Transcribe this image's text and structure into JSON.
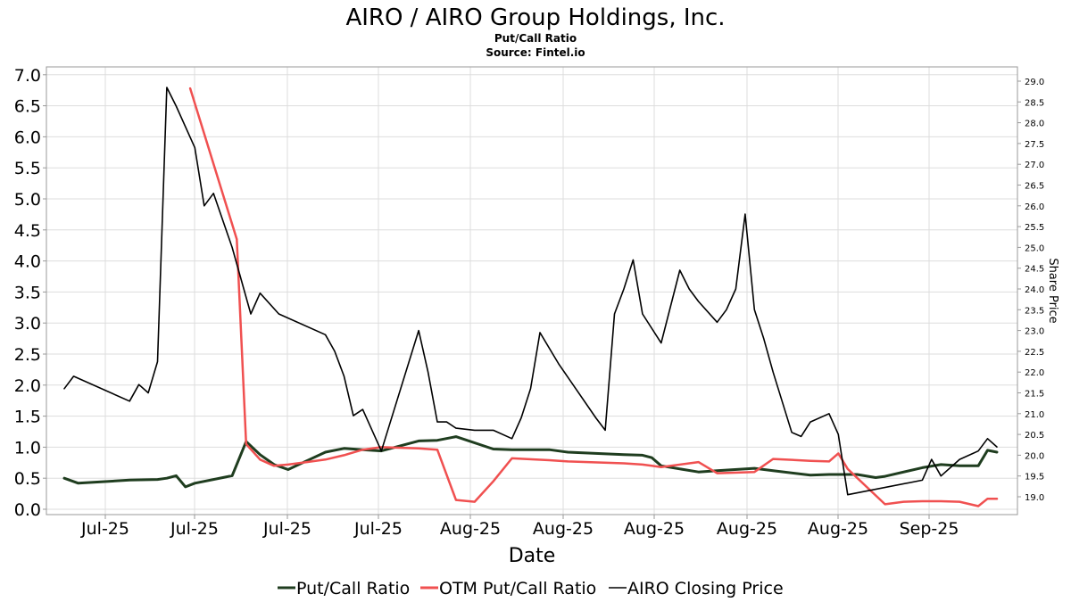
{
  "chart_data": {
    "type": "line",
    "title": "AIRO / AIRO Group Holdings, Inc.",
    "subtitle": "Put/Call Ratio",
    "source": "Source: Fintel.io",
    "xlabel": "Date",
    "ylabel_left": "",
    "ylabel_right": "Share Price",
    "x_tick_labels": [
      "Jul-25",
      "Jul-25",
      "Jul-25",
      "Jul-25",
      "Aug-25",
      "Aug-25",
      "Aug-25",
      "Aug-25",
      "Aug-25",
      "Sep-25"
    ],
    "ylim_left": [
      0,
      7.0
    ],
    "yticks_left": [
      "0.0",
      "0.5",
      "1.0",
      "1.5",
      "2.0",
      "2.5",
      "3.0",
      "3.5",
      "4.0",
      "4.5",
      "5.0",
      "5.5",
      "6.0",
      "6.5",
      "7.0"
    ],
    "ylim_right": [
      18.7,
      29.2
    ],
    "yticks_right": [
      "19.0",
      "19.5",
      "20.0",
      "20.5",
      "21.0",
      "21.5",
      "22.0",
      "22.5",
      "23.0",
      "23.5",
      "24.0",
      "24.5",
      "25.0",
      "25.5",
      "26.0",
      "26.5",
      "27.0",
      "27.5",
      "28.0",
      "28.5",
      "29.0"
    ],
    "grid": true,
    "legend_position": "bottom",
    "x_day_range": [
      0,
      100
    ],
    "series": [
      {
        "name": "Put/Call Ratio",
        "color": "#1f3d1f",
        "axis": "left",
        "x": [
          0,
          1.5,
          7,
          10,
          11,
          12,
          13,
          14,
          18,
          19.5,
          21,
          22.5,
          24,
          26,
          28,
          30,
          32,
          34,
          38,
          40,
          42,
          46,
          48,
          52,
          54,
          60,
          62,
          63,
          64,
          68,
          70,
          74,
          76,
          80,
          82,
          85,
          87,
          88,
          92,
          94,
          96,
          98,
          99,
          100
        ],
        "values": [
          0.5,
          0.42,
          0.47,
          0.48,
          0.5,
          0.54,
          0.36,
          0.42,
          0.54,
          1.09,
          0.88,
          0.72,
          0.64,
          0.78,
          0.92,
          0.98,
          0.96,
          0.94,
          1.1,
          1.11,
          1.17,
          0.97,
          0.96,
          0.96,
          0.92,
          0.88,
          0.87,
          0.83,
          0.7,
          0.6,
          0.62,
          0.66,
          0.62,
          0.55,
          0.56,
          0.56,
          0.51,
          0.53,
          0.67,
          0.72,
          0.7,
          0.7,
          0.95,
          0.92
        ]
      },
      {
        "name": "OTM Put/Call Ratio",
        "color": "#f05050",
        "axis": "left",
        "x": [
          13.5,
          18.5,
          19.5,
          21,
          22.5,
          24,
          26,
          28,
          30,
          32,
          34,
          38,
          40,
          42,
          44,
          46,
          48,
          52,
          54,
          60,
          62,
          63,
          64,
          68,
          70,
          74,
          76,
          80,
          82,
          83,
          84,
          88,
          90,
          92,
          94,
          96,
          98,
          99,
          100
        ],
        "values": [
          6.78,
          4.35,
          1.05,
          0.8,
          0.7,
          0.72,
          0.76,
          0.8,
          0.87,
          0.96,
          1.0,
          0.98,
          0.96,
          0.15,
          0.12,
          0.45,
          0.82,
          0.79,
          0.77,
          0.74,
          0.72,
          0.7,
          0.68,
          0.76,
          0.58,
          0.6,
          0.81,
          0.78,
          0.77,
          0.9,
          0.65,
          0.08,
          0.12,
          0.13,
          0.13,
          0.12,
          0.05,
          0.17,
          0.17
        ]
      },
      {
        "name": "AIRO Closing Price",
        "color": "#000000",
        "axis": "right",
        "x": [
          0,
          1,
          7,
          8,
          9,
          10,
          11,
          12,
          14,
          15,
          16,
          18,
          20,
          21,
          23,
          28,
          29,
          30,
          31,
          32,
          34,
          38,
          39,
          40,
          41,
          42,
          44,
          46,
          48,
          49,
          50,
          51,
          53,
          57,
          58,
          59,
          60,
          61,
          62,
          64,
          66,
          67,
          68,
          70,
          71,
          72,
          73,
          74,
          75,
          76,
          78,
          79,
          80,
          82,
          83,
          84,
          92,
          93,
          94,
          96,
          98,
          99,
          100
        ],
        "values": [
          21.6,
          21.9,
          21.3,
          21.7,
          21.5,
          22.25,
          28.85,
          28.4,
          27.4,
          26.0,
          26.3,
          25.0,
          23.4,
          23.9,
          23.4,
          22.9,
          22.5,
          21.9,
          20.95,
          21.1,
          20.1,
          23.0,
          22.0,
          20.8,
          20.8,
          20.65,
          20.6,
          20.6,
          20.4,
          20.9,
          21.6,
          22.95,
          22.2,
          20.9,
          20.6,
          23.4,
          24.0,
          24.7,
          23.4,
          22.7,
          24.45,
          24.0,
          23.7,
          23.2,
          23.5,
          24.0,
          25.8,
          23.5,
          22.8,
          22.0,
          20.55,
          20.45,
          20.8,
          21.0,
          20.5,
          19.05,
          19.4,
          19.9,
          19.5,
          19.9,
          20.1,
          20.4,
          20.2
        ]
      }
    ]
  }
}
